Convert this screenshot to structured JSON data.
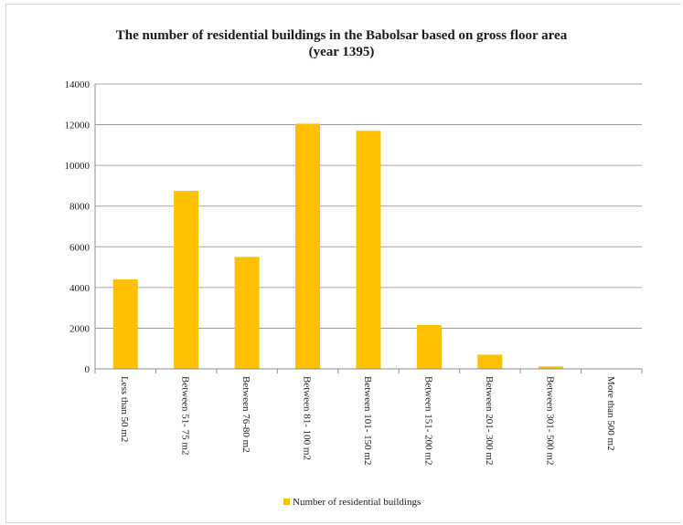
{
  "chart_data": {
    "type": "bar",
    "title_line1": "The number of residential buildings in the Babolsar based on gross floor area",
    "title_line2": "(year 1395)",
    "categories": [
      "Less than 50 m2",
      "Between 51- 75 m2",
      "Between 76-80 m2",
      "Between 81- 100 m2",
      "Between 101- 150 m2",
      "Between 151- 200 m2",
      "Between 201- 300 m2",
      "Between 301- 500 m2",
      "More than 500 m2"
    ],
    "series": [
      {
        "name": "Number of residential buildings",
        "values": [
          4400,
          8750,
          5500,
          12050,
          11700,
          2150,
          700,
          120,
          10
        ]
      }
    ],
    "yticks": [
      "0",
      "2000",
      "4000",
      "6000",
      "8000",
      "10000",
      "12000",
      "14000"
    ],
    "ylim": [
      0,
      14000
    ],
    "grid": true,
    "legend_position": "bottom",
    "bar_color": "#ffc000",
    "grid_color": "#8c8c8c"
  }
}
